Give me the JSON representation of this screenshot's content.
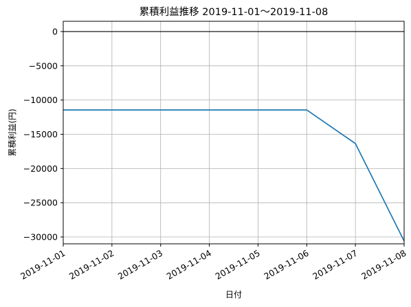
{
  "chart_data": {
    "type": "line",
    "title": "累積利益推移  2019-11-01～2019-11-08",
    "xlabel": "日付",
    "ylabel": "累積利益(円)",
    "x": [
      "2019-11-01",
      "2019-11-02",
      "2019-11-03",
      "2019-11-04",
      "2019-11-05",
      "2019-11-06",
      "2019-11-07",
      "2019-11-08"
    ],
    "series": [
      {
        "values": [
          -11450,
          -11450,
          -11450,
          -11450,
          -11450,
          -11450,
          -16350,
          -30600
        ],
        "color": "#1f77b4"
      }
    ],
    "ylim": [
      -31000,
      1500
    ],
    "yticks": [
      0,
      -5000,
      -10000,
      -15000,
      -20000,
      -25000,
      -30000
    ],
    "ytick_labels": [
      "0",
      "−5000",
      "−10000",
      "−15000",
      "−20000",
      "−25000",
      "−30000"
    ],
    "zero_line": {
      "y": 0,
      "color": "#000000"
    },
    "grid": true,
    "legend": false
  }
}
